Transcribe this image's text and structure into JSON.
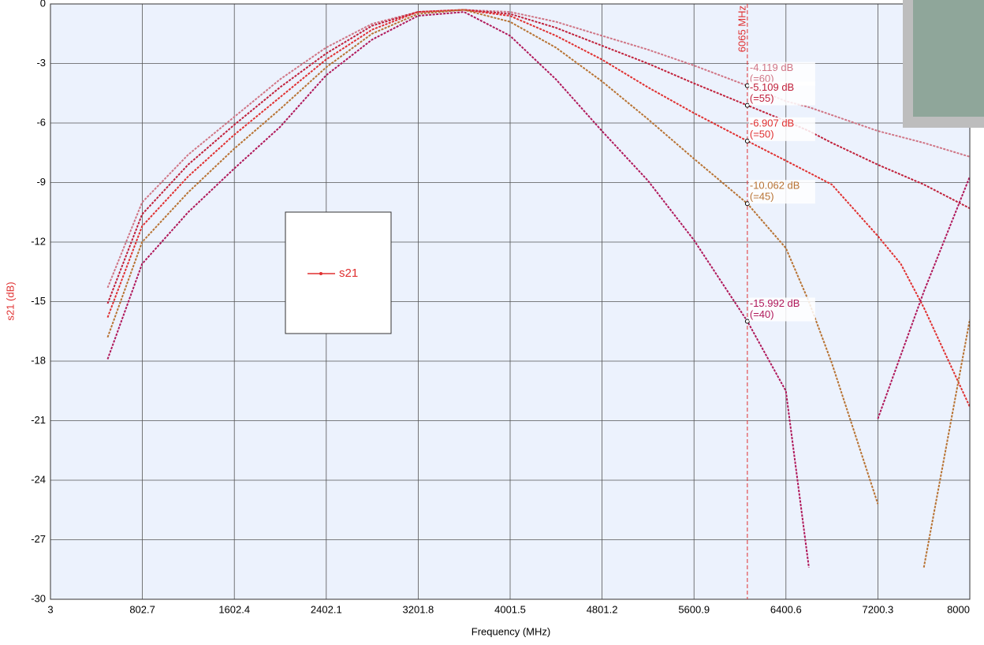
{
  "chart_data": {
    "type": "line",
    "xlabel": "Frequency (MHz)",
    "ylabel": "s21 (dB)",
    "legend": "s21",
    "legend_color": "#e03030",
    "xlim": [
      3,
      8000
    ],
    "xticks": [
      3,
      802.7,
      1602.4,
      2402.1,
      3201.8,
      4001.5,
      4801.2,
      5600.9,
      6400.6,
      7200.3,
      8000
    ],
    "ylim": [
      -30,
      0
    ],
    "yticks": [
      0,
      -3,
      -6,
      -9,
      -12,
      -15,
      -18,
      -21,
      -24,
      -27,
      -30
    ],
    "grid": true,
    "marker": {
      "x": 6065,
      "label": "6065 MHz",
      "color": "#e03030"
    },
    "x": [
      500,
      800,
      1200,
      1600,
      2000,
      2400,
      2800,
      3200,
      3600,
      4000,
      4400,
      4800,
      5200,
      5600,
      6065,
      6400,
      6600,
      6800,
      7200,
      7400,
      7600,
      8000
    ],
    "series": [
      {
        "name": "(=60)",
        "color": "#d07585",
        "marker_value": -4.119,
        "marker_value_label": "-4.119 dB",
        "values": [
          -14.3,
          -10.0,
          -7.6,
          -5.7,
          -3.8,
          -2.2,
          -1.0,
          -0.4,
          -0.3,
          -0.4,
          -0.9,
          -1.6,
          -2.3,
          -3.1,
          -4.119,
          -4.9,
          -5.2,
          -5.6,
          -6.4,
          -6.7,
          -7.0,
          -7.7
        ]
      },
      {
        "name": "(=55)",
        "color": "#c0203a",
        "marker_value": -5.109,
        "marker_value_label": "-5.109 dB",
        "values": [
          -15.1,
          -10.6,
          -8.1,
          -6.1,
          -4.2,
          -2.5,
          -1.1,
          -0.4,
          -0.3,
          -0.5,
          -1.2,
          -2.1,
          -3.0,
          -4.0,
          -5.109,
          -5.9,
          -6.4,
          -7.0,
          -8.1,
          -8.6,
          -9.1,
          -10.3
        ]
      },
      {
        "name": "(=50)",
        "color": "#e03030",
        "marker_value": -6.907,
        "marker_value_label": "-6.907 dB",
        "values": [
          -15.8,
          -11.2,
          -8.7,
          -6.6,
          -4.7,
          -2.8,
          -1.3,
          -0.4,
          -0.3,
          -0.6,
          -1.6,
          -2.8,
          -4.2,
          -5.5,
          -6.907,
          -7.9,
          -8.5,
          -9.1,
          -11.7,
          -13.1,
          -15.3,
          -20.3
        ]
      },
      {
        "name": "(=45)",
        "color": "#b87333",
        "marker_value": -10.062,
        "marker_value_label": "-10.062 dB",
        "values": [
          -16.8,
          -12.0,
          -9.5,
          -7.3,
          -5.3,
          -3.2,
          -1.5,
          -0.5,
          -0.3,
          -0.9,
          -2.2,
          -3.9,
          -5.8,
          -7.8,
          -10.062,
          -12.3,
          -15.0,
          -18.1,
          -25.2,
          null,
          -28.4,
          -15.9
        ]
      },
      {
        "name": "(=40)",
        "color": "#b0185a",
        "marker_value": -15.992,
        "marker_value_label": "-15.992 dB",
        "values": [
          -17.9,
          -13.1,
          -10.5,
          -8.3,
          -6.2,
          -3.6,
          -1.8,
          -0.6,
          -0.4,
          -1.6,
          -3.8,
          -6.4,
          -8.9,
          -11.9,
          -15.992,
          -19.5,
          -28.4,
          null,
          -20.9,
          -17.7,
          -14.5,
          -8.7
        ]
      }
    ]
  }
}
